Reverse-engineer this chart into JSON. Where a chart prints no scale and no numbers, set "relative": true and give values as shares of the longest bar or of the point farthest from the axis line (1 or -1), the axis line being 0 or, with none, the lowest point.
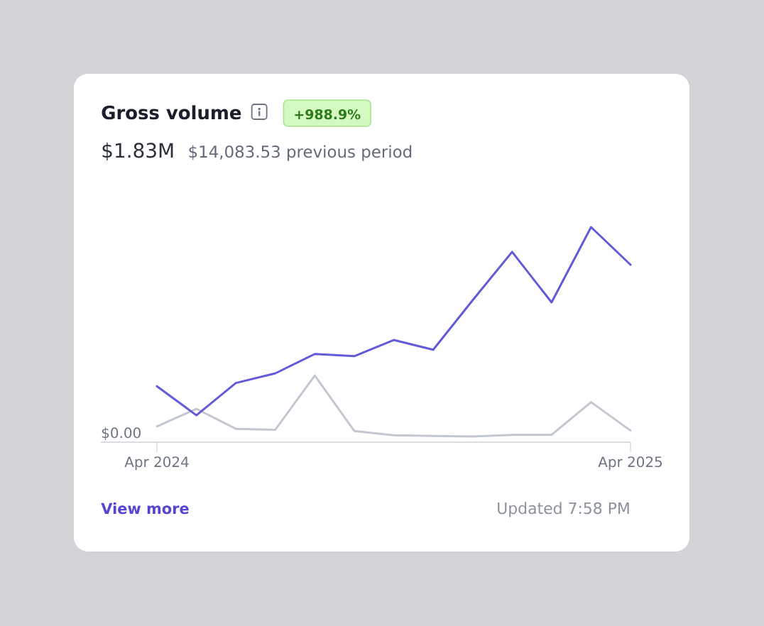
{
  "chart_data": {
    "type": "line",
    "title": "Gross volume",
    "subtitle": "$1.83M",
    "annotations": [
      "+988.9%",
      "$14,083.53 previous period",
      "View more",
      "Updated 7:58 PM",
      "$0.00"
    ],
    "categories": [
      "Apr 2024",
      null,
      null,
      null,
      null,
      null,
      null,
      null,
      null,
      null,
      null,
      null,
      "Apr 2025"
    ],
    "relative": true,
    "series": [
      {
        "color": "#c3c7cf",
        "values": [
          0.073,
          0.155,
          0.062,
          0.058,
          0.31,
          0.052,
          0.032,
          0.029,
          0.026,
          0.034,
          0.034,
          0.186,
          0.054
        ]
      },
      {
        "color": "#625ad8",
        "values": [
          0.26,
          0.125,
          0.275,
          0.32,
          0.41,
          0.4,
          0.475,
          0.43,
          0.66,
          0.885,
          0.65,
          1.0,
          0.825
        ]
      }
    ],
    "marker": "none",
    "line_style": "solid"
  }
}
